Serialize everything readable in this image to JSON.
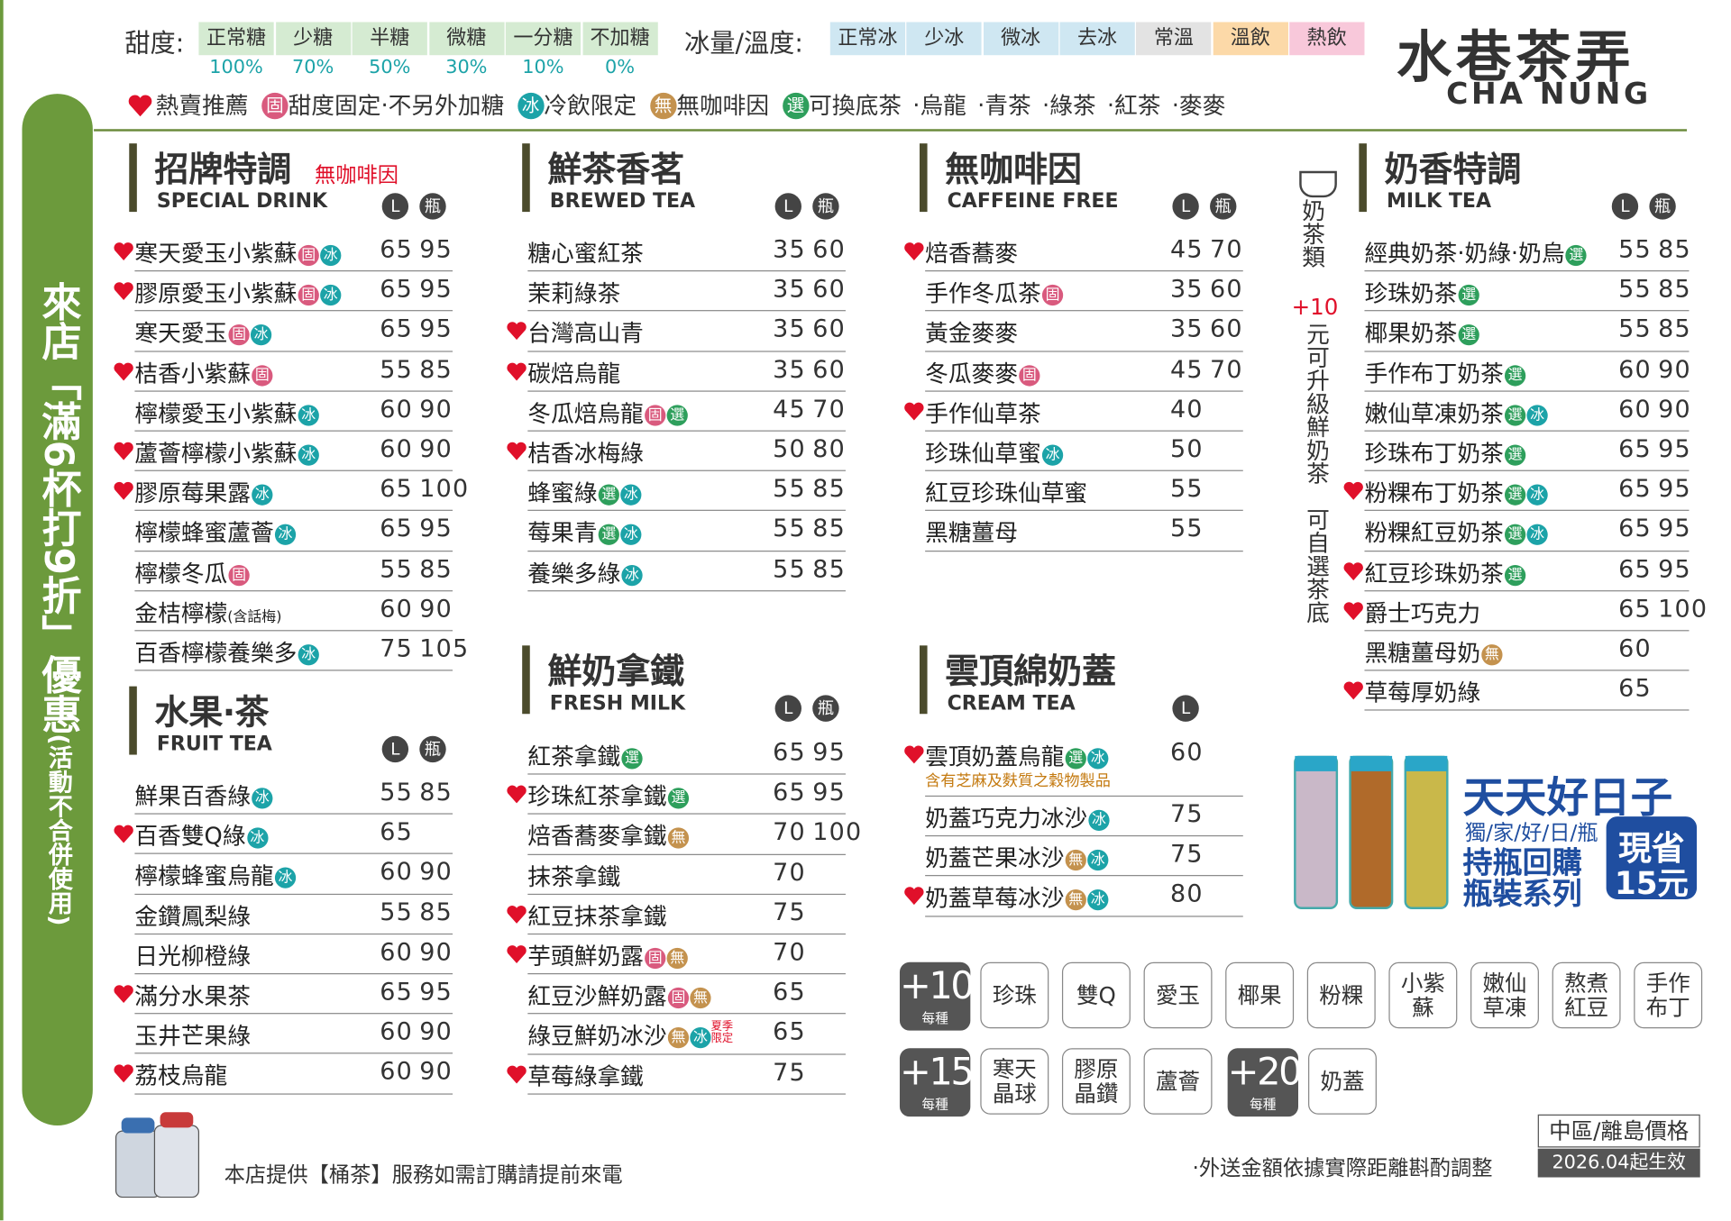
{
  "header": {
    "sweetness_label": "甜度:",
    "sweetness": [
      {
        "label": "正常糖",
        "percent": "100%"
      },
      {
        "label": "少糖",
        "percent": "70%"
      },
      {
        "label": "半糖",
        "percent": "50%"
      },
      {
        "label": "微糖",
        "percent": "30%"
      },
      {
        "label": "一分糖",
        "percent": "10%"
      },
      {
        "label": "不加糖",
        "percent": "0%"
      }
    ],
    "ice_label": "冰量/溫度:",
    "ice": [
      {
        "label": "正常冰",
        "color": "#cfe7f2"
      },
      {
        "label": "少冰",
        "color": "#cfe7f2"
      },
      {
        "label": "微冰",
        "color": "#cfe7f2"
      },
      {
        "label": "去冰",
        "color": "#cfe7f2"
      },
      {
        "label": "常溫",
        "color": "#e3e3e3"
      },
      {
        "label": "溫飲",
        "color": "#fcd9a8"
      },
      {
        "label": "熱飲",
        "color": "#f8c8da"
      }
    ],
    "logo": "水巷茶弄",
    "logo_en": "CHA NUNG"
  },
  "legend": {
    "hot": "熱賣推薦",
    "items": [
      {
        "icon": "固",
        "text": "甜度固定‧不另外加糖"
      },
      {
        "icon": "冰",
        "text": "冷飲限定"
      },
      {
        "icon": "無",
        "text": "無咖啡因"
      },
      {
        "icon": "選",
        "text": "可換底茶"
      }
    ],
    "teas": [
      "‧烏龍",
      "‧青茶",
      "‧綠茶",
      "‧紅茶",
      "‧麥麥"
    ]
  },
  "promo_side": {
    "main": "來店「滿6杯打9折」優惠",
    "note": "(活動不合併使用)"
  },
  "sections": [
    {
      "title": "招牌特調",
      "note": "無咖啡因",
      "en": "SPECIAL DRINK",
      "sizes": [
        "L",
        "瓶"
      ],
      "items": [
        {
          "name": "寒天愛玉小紫蘇",
          "tags": [
            "固",
            "冰"
          ],
          "prices": [
            65,
            95
          ],
          "hot": true
        },
        {
          "name": "膠原愛玉小紫蘇",
          "tags": [
            "固",
            "冰"
          ],
          "prices": [
            65,
            95
          ],
          "hot": true
        },
        {
          "name": "寒天愛玉",
          "tags": [
            "固",
            "冰"
          ],
          "prices": [
            65,
            95
          ],
          "hot": false
        },
        {
          "name": "桔香小紫蘇",
          "tags": [
            "固"
          ],
          "prices": [
            55,
            85
          ],
          "hot": true
        },
        {
          "name": "檸檬愛玉小紫蘇",
          "tags": [
            "冰"
          ],
          "prices": [
            60,
            90
          ],
          "hot": false
        },
        {
          "name": "蘆薈檸檬小紫蘇",
          "tags": [
            "冰"
          ],
          "prices": [
            60,
            90
          ],
          "hot": true
        },
        {
          "name": "膠原莓果露",
          "tags": [
            "冰"
          ],
          "prices": [
            65,
            100
          ],
          "hot": true
        },
        {
          "name": "檸檬蜂蜜蘆薈",
          "tags": [
            "冰"
          ],
          "prices": [
            65,
            95
          ],
          "hot": false
        },
        {
          "name": "檸檬冬瓜",
          "tags": [
            "固"
          ],
          "prices": [
            55,
            85
          ],
          "hot": false
        },
        {
          "name": "金桔檸檬",
          "small": "(含話梅)",
          "tags": [],
          "prices": [
            60,
            90
          ],
          "hot": false
        },
        {
          "name": "百香檸檬養樂多",
          "tags": [
            "冰"
          ],
          "prices": [
            75,
            105
          ],
          "hot": false
        }
      ]
    },
    {
      "title": "水果‧茶",
      "en": "FRUIT TEA",
      "sizes": [
        "L",
        "瓶"
      ],
      "items": [
        {
          "name": "鮮果百香綠",
          "tags": [
            "冰"
          ],
          "prices": [
            55,
            85
          ],
          "hot": false
        },
        {
          "name": "百香雙Q綠",
          "tags": [
            "冰"
          ],
          "prices": [
            65
          ],
          "hot": true
        },
        {
          "name": "檸檬蜂蜜烏龍",
          "tags": [
            "冰"
          ],
          "prices": [
            60,
            90
          ],
          "hot": false
        },
        {
          "name": "金鑽鳳梨綠",
          "tags": [],
          "prices": [
            55,
            85
          ],
          "hot": false
        },
        {
          "name": "日光柳橙綠",
          "tags": [],
          "prices": [
            60,
            90
          ],
          "hot": false
        },
        {
          "name": "滿分水果茶",
          "tags": [],
          "prices": [
            65,
            95
          ],
          "hot": true
        },
        {
          "name": "玉井芒果綠",
          "tags": [],
          "prices": [
            60,
            90
          ],
          "hot": false
        },
        {
          "name": "荔枝烏龍",
          "tags": [],
          "prices": [
            60,
            90
          ],
          "hot": true
        }
      ]
    },
    {
      "title": "鮮茶香茗",
      "en": "BREWED TEA",
      "sizes": [
        "L",
        "瓶"
      ],
      "items": [
        {
          "name": "糖心蜜紅茶",
          "tags": [],
          "prices": [
            35,
            60
          ],
          "hot": false
        },
        {
          "name": "茉莉綠茶",
          "tags": [],
          "prices": [
            35,
            60
          ],
          "hot": false
        },
        {
          "name": "台灣高山青",
          "tags": [],
          "prices": [
            35,
            60
          ],
          "hot": true
        },
        {
          "name": "碳焙烏龍",
          "tags": [],
          "prices": [
            35,
            60
          ],
          "hot": true
        },
        {
          "name": "冬瓜焙烏龍",
          "tags": [
            "固",
            "選"
          ],
          "prices": [
            45,
            70
          ],
          "hot": false
        },
        {
          "name": "桔香冰梅綠",
          "tags": [],
          "prices": [
            50,
            80
          ],
          "hot": true
        },
        {
          "name": "蜂蜜綠",
          "tags": [
            "選",
            "冰"
          ],
          "prices": [
            55,
            85
          ],
          "hot": false
        },
        {
          "name": "莓果青",
          "tags": [
            "選",
            "冰"
          ],
          "prices": [
            55,
            85
          ],
          "hot": false
        },
        {
          "name": "養樂多綠",
          "tags": [
            "冰"
          ],
          "prices": [
            55,
            85
          ],
          "hot": false
        }
      ]
    },
    {
      "title": "鮮奶拿鐵",
      "en": "FRESH MILK",
      "sizes": [
        "L",
        "瓶"
      ],
      "items": [
        {
          "name": "紅茶拿鐵",
          "tags": [
            "選"
          ],
          "prices": [
            65,
            95
          ],
          "hot": false
        },
        {
          "name": "珍珠紅茶拿鐵",
          "tags": [
            "選"
          ],
          "prices": [
            65,
            95
          ],
          "hot": true
        },
        {
          "name": "焙香蕎麥拿鐵",
          "tags": [
            "無"
          ],
          "prices": [
            70,
            100
          ],
          "hot": false
        },
        {
          "name": "抹茶拿鐵",
          "tags": [],
          "prices": [
            70
          ],
          "hot": false
        },
        {
          "name": "紅豆抹茶拿鐵",
          "tags": [],
          "prices": [
            75
          ],
          "hot": true
        },
        {
          "name": "芋頭鮮奶露",
          "tags": [
            "固",
            "無"
          ],
          "prices": [
            70
          ],
          "hot": true
        },
        {
          "name": "紅豆沙鮮奶露",
          "tags": [
            "固",
            "無"
          ],
          "prices": [
            65
          ],
          "hot": false
        },
        {
          "name": "綠豆鮮奶冰沙",
          "tags": [
            "無",
            "冰"
          ],
          "limited": "夏季限定",
          "prices": [
            65
          ],
          "hot": false
        },
        {
          "name": "草莓綠拿鐵",
          "tags": [],
          "prices": [
            75
          ],
          "hot": true
        }
      ]
    },
    {
      "title": "無咖啡因",
      "en": "CAFFEINE FREE",
      "sizes": [
        "L",
        "瓶"
      ],
      "items": [
        {
          "name": "焙香蕎麥",
          "tags": [],
          "prices": [
            45,
            70
          ],
          "hot": true
        },
        {
          "name": "手作冬瓜茶",
          "tags": [
            "固"
          ],
          "prices": [
            35,
            60
          ],
          "hot": false
        },
        {
          "name": "黃金麥麥",
          "tags": [],
          "prices": [
            35,
            60
          ],
          "hot": false
        },
        {
          "name": "冬瓜麥麥",
          "tags": [
            "固"
          ],
          "prices": [
            45,
            70
          ],
          "hot": false
        },
        {
          "name": "手作仙草茶",
          "tags": [],
          "prices": [
            40
          ],
          "hot": true
        },
        {
          "name": "珍珠仙草蜜",
          "tags": [
            "冰"
          ],
          "prices": [
            50
          ],
          "hot": false
        },
        {
          "name": "紅豆珍珠仙草蜜",
          "tags": [],
          "prices": [
            55
          ],
          "hot": false
        },
        {
          "name": "黑糖薑母",
          "tags": [],
          "prices": [
            55
          ],
          "hot": false
        }
      ]
    },
    {
      "title": "雲頂綿奶蓋",
      "en": "CREAM TEA",
      "sizes": [
        "L"
      ],
      "items": [
        {
          "name": "雲頂奶蓋烏龍",
          "tags": [
            "選",
            "冰"
          ],
          "prices": [
            60
          ],
          "hot": true,
          "note": "含有芝麻及麩質之穀物製品"
        },
        {
          "name": "奶蓋巧克力冰沙",
          "tags": [
            "冰"
          ],
          "prices": [
            75
          ],
          "hot": false
        },
        {
          "name": "奶蓋芒果冰沙",
          "tags": [
            "無",
            "冰"
          ],
          "prices": [
            75
          ],
          "hot": false
        },
        {
          "name": "奶蓋草莓冰沙",
          "tags": [
            "無",
            "冰"
          ],
          "prices": [
            80
          ],
          "hot": true
        }
      ]
    },
    {
      "title": "奶香特調",
      "en": "MILK TEA",
      "sizes": [
        "L",
        "瓶"
      ],
      "items": [
        {
          "name": "經典奶茶‧奶綠‧奶烏",
          "tags": [
            "選"
          ],
          "prices": [
            55,
            85
          ],
          "hot": false
        },
        {
          "name": "珍珠奶茶",
          "tags": [
            "選"
          ],
          "prices": [
            55,
            85
          ],
          "hot": false
        },
        {
          "name": "椰果奶茶",
          "tags": [
            "選"
          ],
          "prices": [
            55,
            85
          ],
          "hot": false
        },
        {
          "name": "手作布丁奶茶",
          "tags": [
            "選"
          ],
          "prices": [
            60,
            90
          ],
          "hot": false
        },
        {
          "name": "嫩仙草凍奶茶",
          "tags": [
            "選",
            "冰"
          ],
          "prices": [
            60,
            90
          ],
          "hot": false
        },
        {
          "name": "珍珠布丁奶茶",
          "tags": [
            "選"
          ],
          "prices": [
            65,
            95
          ],
          "hot": false
        },
        {
          "name": "粉粿布丁奶茶",
          "tags": [
            "選",
            "冰"
          ],
          "prices": [
            65,
            95
          ],
          "hot": true
        },
        {
          "name": "粉粿紅豆奶茶",
          "tags": [
            "選",
            "冰"
          ],
          "prices": [
            65,
            95
          ],
          "hot": false
        },
        {
          "name": "紅豆珍珠奶茶",
          "tags": [
            "選"
          ],
          "prices": [
            65,
            95
          ],
          "hot": true
        },
        {
          "name": "爵士巧克力",
          "tags": [],
          "prices": [
            65,
            100
          ],
          "hot": true
        },
        {
          "name": "黑糖薑母奶",
          "tags": [
            "無"
          ],
          "prices": [
            60
          ],
          "hot": false
        },
        {
          "name": "草莓厚奶綠",
          "tags": [],
          "prices": [
            65
          ],
          "hot": true
        }
      ]
    }
  ],
  "milk_note": {
    "title": "奶茶類",
    "price": "+10",
    "text": "元可升級鮮奶茶　可自選茶底"
  },
  "toppings": [
    {
      "price": "+10",
      "unit": "每種",
      "items": [
        "珍珠",
        "雙Q",
        "愛玉",
        "椰果",
        "粉粿",
        "小紫蘇",
        "嫩仙草凍",
        "熬煮紅豆",
        "手作布丁"
      ]
    },
    {
      "price": "+15",
      "unit": "每種",
      "items": [
        "寒天晶球",
        "膠原晶鑽",
        "蘆薈"
      ]
    },
    {
      "price": "+20",
      "unit": "每種",
      "items": [
        "奶蓋"
      ]
    }
  ],
  "promo": {
    "title": "天天好日子",
    "sub": "獨/家/好/日/瓶",
    "line1": "持瓶回購",
    "line2": "瓶裝系列",
    "save1": "現省",
    "save2": "15元"
  },
  "footer": {
    "bucket": "本店提供【桶茶】服務如需訂購請提前來電",
    "region": "中區/離島價格",
    "date": "2026.04起生效",
    "delivery": "‧外送金額依據實際距離斟酌調整"
  }
}
